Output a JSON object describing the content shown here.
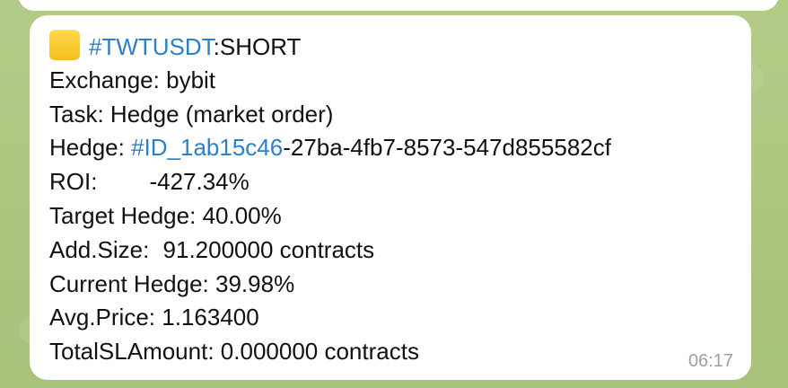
{
  "message": {
    "emoji_icon": "yellow-square-icon",
    "header": {
      "tag": "#TWTUSDT",
      "side": ":SHORT"
    },
    "exchange": {
      "label": "Exchange:",
      "value": "bybit"
    },
    "task": {
      "label": "Task:",
      "value": "Hedge (market order)"
    },
    "hedge": {
      "label": "Hedge:",
      "id_tag": "#ID_1ab15c46",
      "id_rest": "-27ba-4fb7-8573-547d855582cf"
    },
    "roi": {
      "label": "ROI:",
      "value": "-427.34%"
    },
    "target_hedge": {
      "label": "Target Hedge:",
      "value": "40.00%"
    },
    "add_size": {
      "label": "Add.Size:",
      "value": "91.200000 contracts"
    },
    "current_hedge": {
      "label": "Current Hedge:",
      "value": "39.98%"
    },
    "avg_price": {
      "label": "Avg.Price:",
      "value": "1.163400"
    },
    "total_sl_amount": {
      "label": "TotalSLAmount:",
      "value": "0.000000 contracts"
    },
    "time": "06:17"
  }
}
